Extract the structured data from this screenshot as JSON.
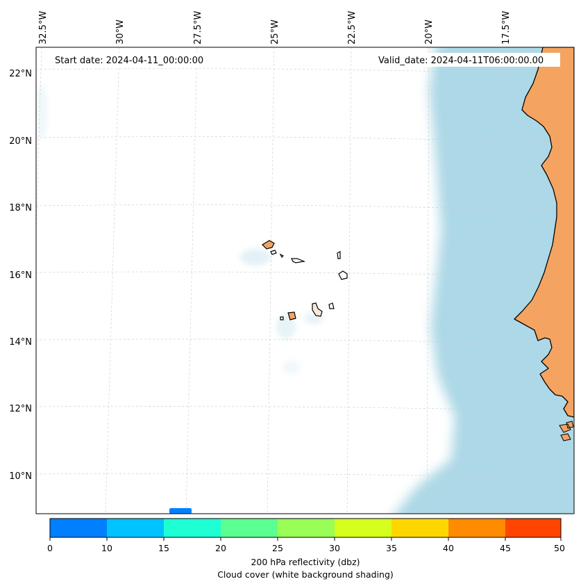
{
  "map": {
    "start_date": "Start date: 2024-04-11_00:00:00",
    "valid_date": "Valid_date: 2024-04-11T06:00:00.00",
    "lon_labels": [
      "32.5°W",
      "30°W",
      "27.5°W",
      "25°W",
      "22.5°W",
      "20°W",
      "17.5°W"
    ],
    "lat_labels": [
      "22°N",
      "20°N",
      "18°N",
      "16°N",
      "14°N",
      "12°N",
      "10°N"
    ]
  },
  "colorbar": {
    "ticks": [
      "0",
      "10",
      "15",
      "20",
      "25",
      "30",
      "35",
      "40",
      "45",
      "50"
    ],
    "colors": [
      "#0080ff",
      "#00c3ff",
      "#1effd4",
      "#5cff91",
      "#99ff57",
      "#d6ff1e",
      "#ffd700",
      "#ff8c00",
      "#ff4500"
    ],
    "title_line1": "200 hPa reflectivity (dbz)",
    "title_line2": "Cloud cover (white background shading)"
  },
  "style": {
    "land": "#f4a460",
    "cloud": "#add8e6",
    "coast": "#000000"
  }
}
